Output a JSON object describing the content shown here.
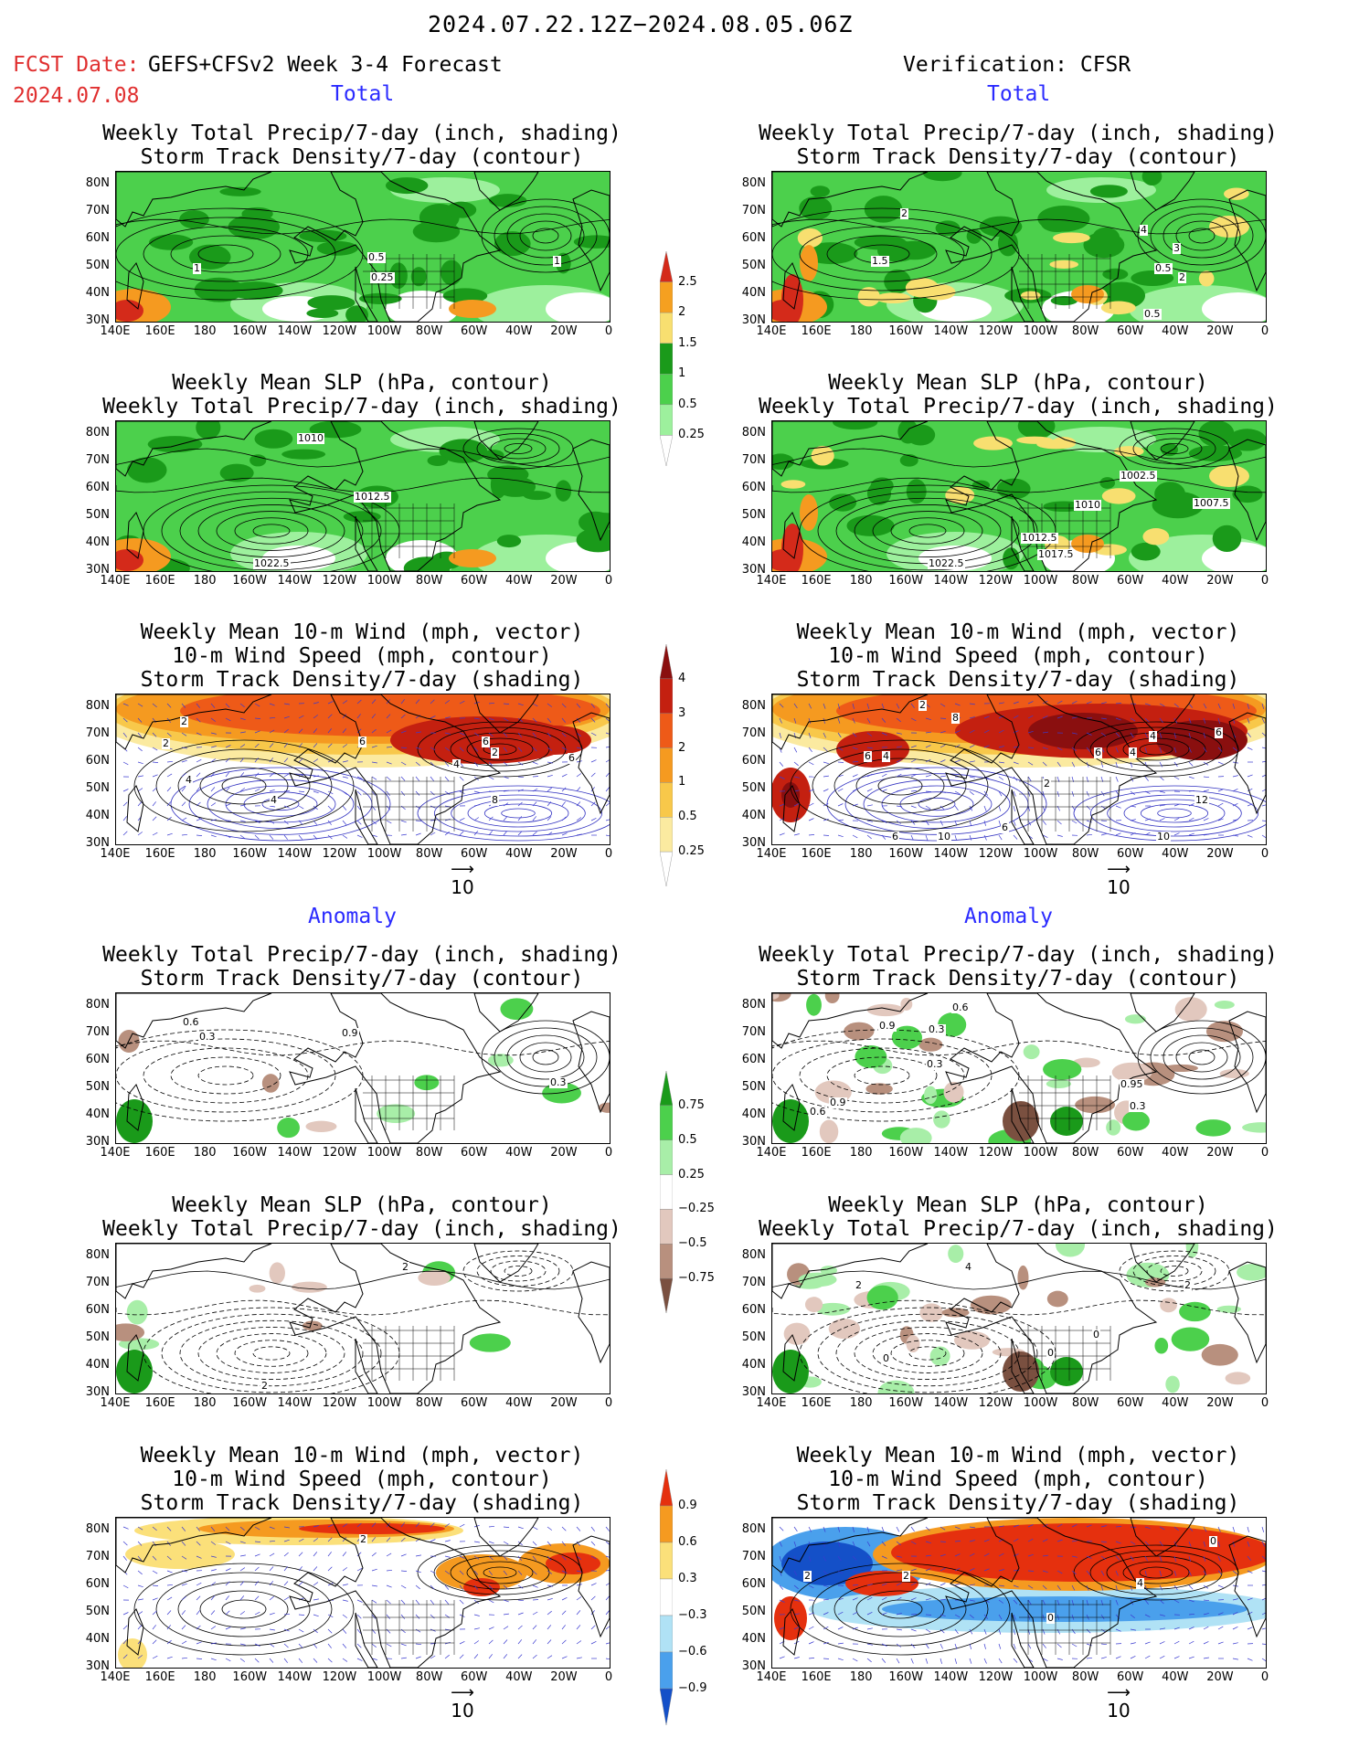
{
  "header": {
    "date_range": "2024.07.22.12Z−2024.08.05.06Z",
    "fcst_label": "FCST Date:",
    "fcst_date": "2024.07.08",
    "model": "GEFS+CFSv2 Week 3-4 Forecast",
    "verification": "Verification: CFSR"
  },
  "sections": {
    "total": "Total",
    "anomaly": "Anomaly"
  },
  "titles": {
    "precip_storm": [
      "Weekly Total Precip/7-day (inch, shading)",
      "Storm Track Density/7-day (contour)"
    ],
    "slp_precip": [
      "Weekly Mean SLP (hPa, contour)",
      "Weekly Total Precip/7-day (inch, shading)"
    ],
    "wind_storm": [
      "Weekly Mean 10-m Wind (mph, vector)",
      "10-m Wind Speed (mph, contour)",
      "Storm Track Density/7-day (shading)"
    ]
  },
  "axes": {
    "lat_ticks": [
      "80N",
      "70N",
      "60N",
      "50N",
      "40N",
      "30N"
    ],
    "lon_ticks": [
      "140E",
      "160E",
      "180",
      "160W",
      "140W",
      "120W",
      "100W",
      "80W",
      "60W",
      "40W",
      "20W",
      "0"
    ]
  },
  "vector_ref": "10",
  "colorbars": {
    "precip_total": {
      "labels": [
        "2.5",
        "2",
        "1.5",
        "1",
        "0.5",
        "0.25"
      ],
      "colors": [
        "#d42a1a",
        "#f5a020",
        "#f8df70",
        "#1a9a1a",
        "#4cd04c",
        "#9df09d",
        "#ffffff"
      ]
    },
    "storm_total": {
      "labels": [
        "4",
        "3",
        "2",
        "1",
        "0.5",
        "0.25"
      ],
      "colors": [
        "#8a0f0f",
        "#c42010",
        "#ee5a18",
        "#f59a20",
        "#f8c84a",
        "#fbeaa0",
        "#ffffff"
      ]
    },
    "precip_anom": {
      "labels": [
        "0.75",
        "0.5",
        "0.25",
        "−0.25",
        "−0.5",
        "−0.75"
      ],
      "colors": [
        "#1a9a1a",
        "#4cd04c",
        "#a8eea8",
        "#ffffff",
        "#e2c8be",
        "#b8907e",
        "#7a5040"
      ]
    },
    "storm_anom": {
      "labels": [
        "0.9",
        "0.6",
        "0.3",
        "−0.3",
        "−0.6",
        "−0.9"
      ],
      "colors": [
        "#e5300e",
        "#f59a20",
        "#fbe07a",
        "#ffffff",
        "#b0e2f5",
        "#4aa0ec",
        "#1450c8"
      ]
    }
  },
  "contour_labels": {
    "p1": [
      "1",
      "0.5",
      "0.25",
      "1"
    ],
    "p2": [
      "2",
      "1.5",
      "4",
      "3",
      "2",
      "0.5",
      "0.5"
    ],
    "p3": [
      "1010",
      "1012.5",
      "1022.5"
    ],
    "p4": [
      "1002.5",
      "1010",
      "1007.5",
      "1012.5",
      "1017.5",
      "1022.5"
    ],
    "p5": [
      "2",
      "2",
      "4",
      "6",
      "6",
      "2",
      "6",
      "4",
      "4",
      "8"
    ],
    "p6": [
      "2",
      "8",
      "6",
      "4",
      "6",
      "4",
      "4",
      "6",
      "2",
      "12",
      "10",
      "10",
      "6",
      "6"
    ],
    "p7": [
      "0.6",
      "0.3",
      "0.9",
      "0.3"
    ],
    "p8": [
      "0.6",
      "0.9",
      "0.3",
      "0.3",
      "0.9",
      "0.6",
      "0.95",
      "0.3"
    ],
    "p9": [
      "2",
      "2"
    ],
    "p10": [
      "4",
      "2",
      "2",
      "0",
      "0",
      "0"
    ],
    "p11": [
      "2"
    ],
    "p12": [
      "0",
      "2",
      "2",
      "4",
      "0"
    ]
  }
}
